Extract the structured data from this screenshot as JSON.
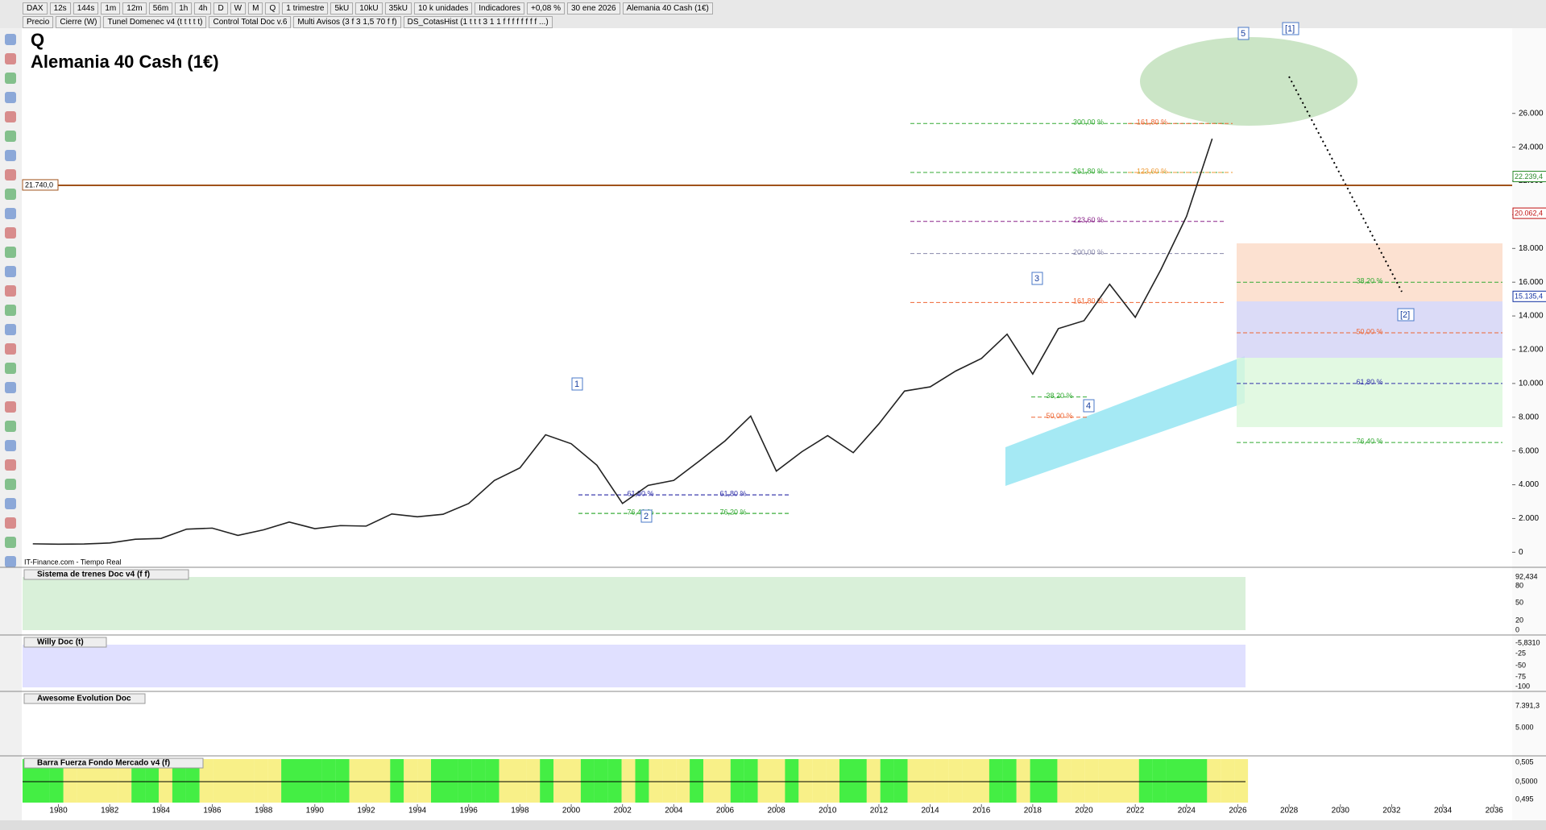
{
  "toolbar": {
    "items": [
      "DAX",
      "12s",
      "144s",
      "1m",
      "12m",
      "56m",
      "1h",
      "4h",
      "D",
      "W",
      "M",
      "Q",
      "1 trimestre",
      "5kU",
      "10kU",
      "35kU",
      "10 k unidades",
      "Indicadores",
      "+0,08 %",
      "30 ene 2026",
      "Alemania 40 Cash (1€)"
    ],
    "studies": [
      "Precio",
      "Cierre (W)",
      "Tunel Domenec v4 (t t t t t)",
      "Control Total Doc v.6",
      "Multi Avisos (3 f 3 1,5 70 f f)",
      "DS_CotasHist (1 t t t 3 1 1 f f f f f f f f ...)"
    ]
  },
  "chart_data": {
    "type": "line",
    "title": "Q",
    "subtitle": "Alemania 40 Cash (1€)",
    "source": "IT-Finance.com - Tiempo Real",
    "color": "#222222",
    "x": [
      1979,
      1980,
      1981,
      1982,
      1983,
      1984,
      1985,
      1986,
      1987,
      1988,
      1989,
      1990,
      1991,
      1992,
      1993,
      1994,
      1995,
      1996,
      1997,
      1998,
      1999,
      2000,
      2001,
      2002,
      2003,
      2004,
      2005,
      2006,
      2007,
      2008,
      2009,
      2010,
      2011,
      2012,
      2013,
      2014,
      2015,
      2016,
      2017,
      2018,
      2019,
      2020,
      2021,
      2022,
      2023,
      2024,
      2025
    ],
    "values": [
      500,
      480,
      490,
      550,
      770,
      820,
      1370,
      1430,
      1000,
      1330,
      1790,
      1400,
      1580,
      1550,
      2270,
      2100,
      2250,
      2890,
      4250,
      5000,
      6960,
      6430,
      5160,
      2890,
      3960,
      4260,
      5410,
      6600,
      8070,
      4810,
      5960,
      6910,
      5900,
      7610,
      9550,
      9800,
      10740,
      11480,
      12920,
      10560,
      13250,
      13720,
      15880,
      13920,
      16750,
      19900,
      24500
    ],
    "xlim": [
      1978.6,
      2036.7
    ],
    "ylim": [
      -700,
      31000
    ],
    "xticks": [
      1980,
      1982,
      1984,
      1986,
      1988,
      1990,
      1992,
      1994,
      1996,
      1998,
      2000,
      2002,
      2004,
      2006,
      2008,
      2010,
      2012,
      2014,
      2016,
      2018,
      2020,
      2022,
      2024,
      2026,
      2028,
      2030,
      2032,
      2034,
      2036
    ],
    "yticks": [
      {
        "value": 2000,
        "label": "2.000"
      },
      {
        "value": 4000,
        "label": "4.000"
      },
      {
        "value": 6000,
        "label": "6.000"
      },
      {
        "value": 8000,
        "label": "8.000"
      },
      {
        "value": 10000,
        "label": "10.000"
      },
      {
        "value": 12000,
        "label": "12.000"
      },
      {
        "value": 14000,
        "label": "14.000"
      },
      {
        "value": 16000,
        "label": "16.000"
      },
      {
        "value": 18000,
        "label": "18.000"
      },
      {
        "value": 20000,
        "label": "20.000"
      },
      {
        "value": 22000,
        "label": "22.000"
      },
      {
        "value": 24000,
        "label": "24.000"
      },
      {
        "value": 26000,
        "label": "26.000"
      },
      0
    ],
    "hline": {
      "value": 21740,
      "label": "21.740,0"
    },
    "price_labels": [
      {
        "value": 22239.4,
        "label": "22.239,4"
      },
      {
        "value": 20062.4,
        "label": "20.062,4"
      },
      {
        "value": 15135.4,
        "label": "15.135,4"
      }
    ],
    "fib_levels": [
      {
        "value": 25400,
        "label": "300,00 %"
      },
      {
        "value": 22500,
        "label": "261,80 %"
      },
      {
        "value": 19600,
        "label": "223,60 %"
      },
      {
        "value": 17700,
        "label": "200,00 %"
      },
      {
        "value": 14800,
        "label": "161,80 %"
      },
      {
        "value": 25400,
        "label": "161,80 %"
      },
      {
        "value": 22500,
        "label": "123,60 %"
      },
      {
        "value": 16000,
        "label": "38,20 %"
      },
      {
        "value": 13000,
        "label": "50,00 %"
      },
      {
        "value": 10000,
        "label": "61,80 %"
      },
      {
        "value": 6500,
        "label": "76,40 %"
      },
      {
        "value": 3400,
        "label": "61,80 %"
      },
      {
        "value": 2300,
        "label": "76,40 %"
      },
      {
        "value": 3400,
        "label": "61,80 %"
      },
      {
        "value": 2300,
        "label": "76,20 %"
      },
      {
        "value": 9200,
        "label": "38,20 %"
      },
      {
        "value": 8000,
        "label": "50,00 %"
      }
    ],
    "waves": [
      "1",
      "2",
      "3",
      "4",
      "5",
      "[1]",
      "[2]"
    ]
  },
  "panels": [
    {
      "title": "Sistema de trenes Doc v4 (f f)",
      "labels": [
        "92,434",
        "80",
        "50",
        "20",
        "0"
      ]
    },
    {
      "title": "Willy Doc (t)",
      "labels": [
        "-5,8310",
        "-25",
        "-50",
        "-75",
        "-100"
      ]
    },
    {
      "title": "Awesome Evolution Doc",
      "labels": [
        "7.391,3",
        "5.000"
      ]
    },
    {
      "title": "Barra Fuerza Fondo Mercado v4 (f)",
      "labels": [
        "0,505",
        "0,5000",
        "0,495"
      ]
    }
  ]
}
